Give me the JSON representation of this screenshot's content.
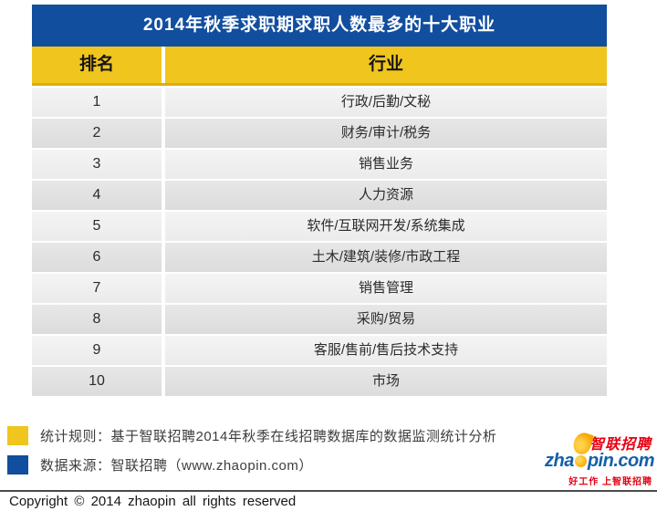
{
  "table": {
    "title": "2014年秋季求职期求职人数最多的十大职业",
    "columns": [
      {
        "key": "rank",
        "label": "排名"
      },
      {
        "key": "industry",
        "label": "行业"
      }
    ],
    "rows": [
      {
        "rank": "1",
        "industry": "行政/后勤/文秘"
      },
      {
        "rank": "2",
        "industry": "财务/审计/税务"
      },
      {
        "rank": "3",
        "industry": "销售业务"
      },
      {
        "rank": "4",
        "industry": "人力资源"
      },
      {
        "rank": "5",
        "industry": "软件/互联网开发/系统集成"
      },
      {
        "rank": "6",
        "industry": "土木/建筑/装修/市政工程"
      },
      {
        "rank": "7",
        "industry": "销售管理"
      },
      {
        "rank": "8",
        "industry": "采购/贸易"
      },
      {
        "rank": "9",
        "industry": "客服/售前/售后技术支持"
      },
      {
        "rank": "10",
        "industry": "市场"
      }
    ]
  },
  "notes": {
    "stat_rule": "统计规则：基于智联招聘2014年秋季在线招聘数据库的数据监测统计分析",
    "data_source": "数据来源：智联招聘（www.zhaopin.com）"
  },
  "logo": {
    "brand_cn": "智联招聘",
    "domain_prefix": "zha",
    "domain_suffix": "pin.com",
    "brand_domain_full": "zhaopin.com",
    "tagline": "好工作 上智联招聘"
  },
  "footer": {
    "copyright": "Copyright © 2014 zhaopin all rights reserved"
  },
  "colors": {
    "header_blue": "#114E9E",
    "header_yellow": "#F0C51E",
    "header_yellow_edge": "#DCAE12",
    "row_light": "#F0F0F0",
    "row_dark": "#E0E0E0",
    "brand_red": "#E60012",
    "logo_blue": "#1360AB",
    "logo_orange": "#F7A600"
  },
  "chart_data": {
    "type": "table",
    "title": "2014年秋季求职期求职人数最多的十大职业",
    "columns": [
      "排名",
      "行业"
    ],
    "rows": [
      [
        "1",
        "行政/后勤/文秘"
      ],
      [
        "2",
        "财务/审计/税务"
      ],
      [
        "3",
        "销售业务"
      ],
      [
        "4",
        "人力资源"
      ],
      [
        "5",
        "软件/互联网开发/系统集成"
      ],
      [
        "6",
        "土木/建筑/装修/市政工程"
      ],
      [
        "7",
        "销售管理"
      ],
      [
        "8",
        "采购/贸易"
      ],
      [
        "9",
        "客服/售前/售后技术支持"
      ],
      [
        "10",
        "市场"
      ]
    ],
    "notes": [
      "统计规则：基于智联招聘2014年秋季在线招聘数据库的数据监测统计分析",
      "数据来源：智联招聘（www.zhaopin.com）"
    ]
  }
}
